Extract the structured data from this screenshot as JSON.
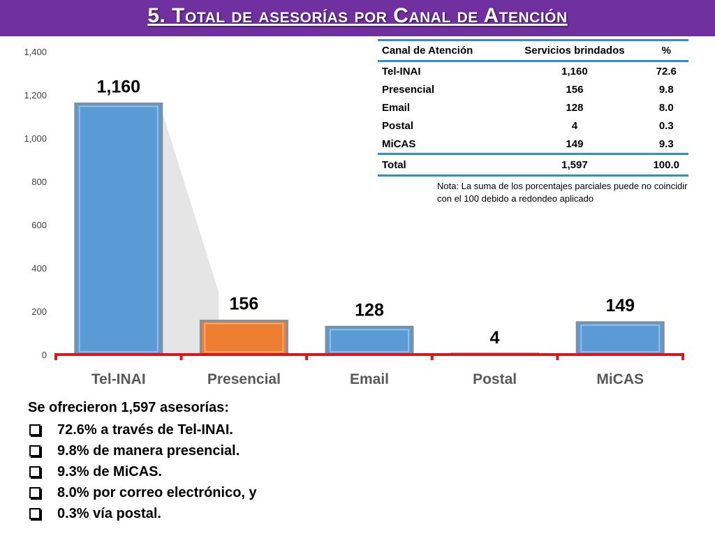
{
  "title": "5. Total de asesorías por Canal de Atención",
  "colors": {
    "title_bar": "#7030a0",
    "bar_blue": "#5b9bd5",
    "bar_orange": "#ed7d31",
    "axis_red": "#e8101a",
    "table_rule": "#2e8fd0"
  },
  "chart_data": {
    "type": "bar",
    "title": "",
    "xlabel": "",
    "ylabel": "",
    "categories": [
      "Tel-INAI",
      "Presencial",
      "Email",
      "Postal",
      "MiCAS"
    ],
    "values": [
      1160,
      156,
      128,
      4,
      149
    ],
    "data_labels": [
      "1,160",
      "156",
      "128",
      "4",
      "149"
    ],
    "bar_colors": [
      "#5b9bd5",
      "#ed7d31",
      "#5b9bd5",
      "#5b9bd5",
      "#5b9bd5"
    ],
    "ylim": [
      0,
      1400
    ],
    "yticks": [
      0,
      200,
      400,
      600,
      800,
      1000,
      1200,
      1400
    ],
    "ytick_labels": [
      "0",
      "200",
      "400",
      "600",
      "800",
      "1,000",
      "1,200",
      "1,400"
    ],
    "grid": false,
    "legend": "none"
  },
  "table": {
    "headers": [
      "Canal de Atención",
      "Servicios brindados",
      "%"
    ],
    "rows": [
      [
        "Tel-INAI",
        "1,160",
        "72.6"
      ],
      [
        "Presencial",
        "156",
        "9.8"
      ],
      [
        "Email",
        "128",
        "8.0"
      ],
      [
        "Postal",
        "4",
        "0.3"
      ],
      [
        "MiCAS",
        "149",
        "9.3"
      ]
    ],
    "total": [
      "Total",
      "1,597",
      "100.0"
    ],
    "note": "Nota: La suma de los porcentajes parciales puede no coincidir con el 100 debido a redondeo aplicado"
  },
  "summary": {
    "heading": "Se ofrecieron 1,597 asesorías:",
    "bullet_icon": "checkbox-bullet-icon",
    "items": [
      "72.6% a través de Tel-INAI.",
      "9.8% de manera presencial.",
      "9.3% de MiCAS.",
      "8.0% por correo electrónico, y",
      "0.3%  vía postal."
    ]
  }
}
